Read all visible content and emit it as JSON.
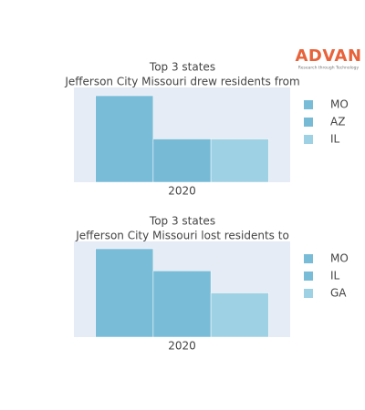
{
  "logo": {
    "name": "ADVAN",
    "tagline": "Research through Technology"
  },
  "chart_data": [
    {
      "type": "bar",
      "title": "Top 3 states",
      "subtitle": "Jefferson City Missouri drew residents from",
      "categories": [
        "2020"
      ],
      "ylim": [
        0,
        2.19
      ],
      "series": [
        {
          "name": "MO",
          "color": "#79bcd8",
          "values": [
            2
          ]
        },
        {
          "name": "AZ",
          "color": "#76bad6",
          "values": [
            1
          ]
        },
        {
          "name": "IL",
          "color": "#9ed1e4",
          "values": [
            1
          ]
        }
      ]
    },
    {
      "type": "bar",
      "title": "Top 3 states",
      "subtitle": "Jefferson City Missouri lost residents to",
      "categories": [
        "2020"
      ],
      "ylim": [
        0,
        4.33
      ],
      "series": [
        {
          "name": "MO",
          "color": "#79bcd8",
          "values": [
            4
          ]
        },
        {
          "name": "IL",
          "color": "#79bcd8",
          "values": [
            3
          ]
        },
        {
          "name": "GA",
          "color": "#9ed1e4",
          "values": [
            2
          ]
        }
      ]
    }
  ]
}
